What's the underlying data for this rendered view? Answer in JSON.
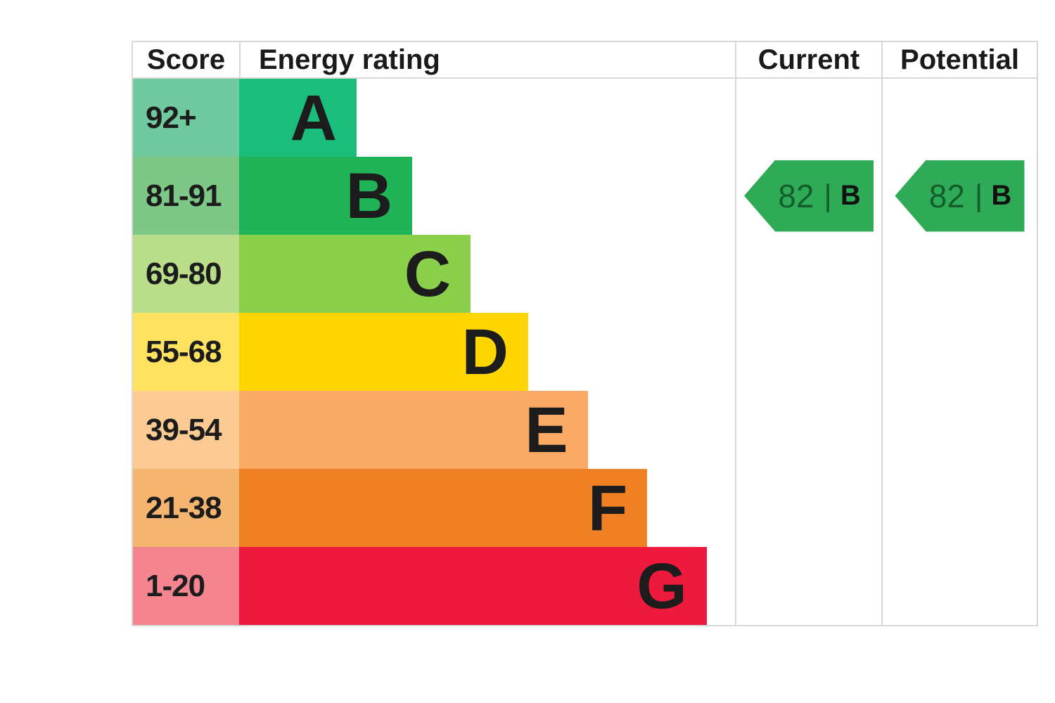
{
  "header": {
    "score": "Score",
    "energy_rating": "Energy rating",
    "current": "Current",
    "potential": "Potential"
  },
  "arrow_style": {
    "color": "#2fab57",
    "separator": "|"
  },
  "chart_data": {
    "type": "bar",
    "orientation": "horizontal",
    "title": "EPC Energy Rating chart",
    "columns": [
      "Score",
      "Energy rating",
      "Current",
      "Potential"
    ],
    "bands": [
      {
        "score_range": "92+",
        "letter": "A",
        "bar_color": "#1abd7c",
        "score_bg": "#71c9a0",
        "width_pct": 23.7
      },
      {
        "score_range": "81-91",
        "letter": "B",
        "bar_color": "#20b357",
        "score_bg": "#7ec887",
        "width_pct": 34.9
      },
      {
        "score_range": "69-80",
        "letter": "C",
        "bar_color": "#8ccf4b",
        "score_bg": "#badd8a",
        "width_pct": 46.7
      },
      {
        "score_range": "55-68",
        "letter": "D",
        "bar_color": "#ffd502",
        "score_bg": "#ffe360",
        "width_pct": 58.3
      },
      {
        "score_range": "39-54",
        "letter": "E",
        "bar_color": "#fbaa66",
        "score_bg": "#fccb93",
        "width_pct": 70.3
      },
      {
        "score_range": "21-38",
        "letter": "F",
        "bar_color": "#ef8023",
        "score_bg": "#f5b470",
        "width_pct": 82.3
      },
      {
        "score_range": "1-20",
        "letter": "G",
        "bar_color": "#ed1a3d",
        "score_bg": "#f48590",
        "width_pct": 94.3
      }
    ],
    "current": {
      "value": 82,
      "band": "B",
      "band_index": 1
    },
    "potential": {
      "value": 82,
      "band": "B",
      "band_index": 1
    }
  }
}
